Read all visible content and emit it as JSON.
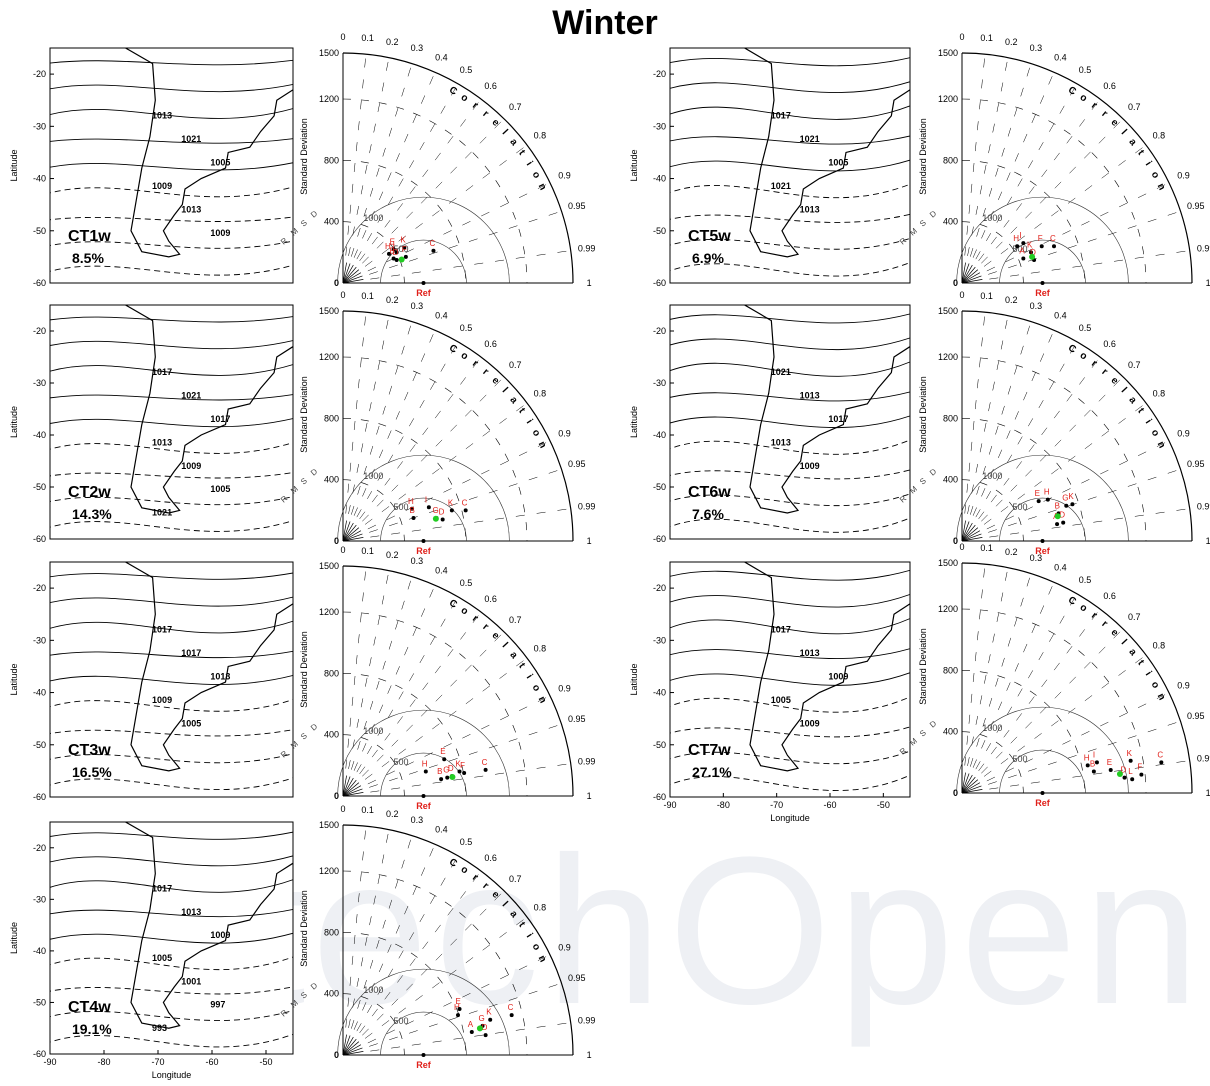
{
  "title": "Winter",
  "watermark": "IntechOpen",
  "map_axes": {
    "ylabel": "Latitude",
    "xlabel": "Longitude",
    "yticks": [
      -20,
      -30,
      -40,
      -50,
      -60
    ],
    "xticks": [
      -90,
      -80,
      -70,
      -60,
      -50
    ]
  },
  "taylor_axes": {
    "ylabel": "Standard Deviation",
    "std_ticks": [
      0,
      400,
      800,
      1200,
      1500
    ],
    "corr_title": "Correlation",
    "corr_ticks": [
      "0",
      "0.1",
      "0.2",
      "0.3",
      "0.4",
      "0.5",
      "0.6",
      "0.7",
      "0.8",
      "0.9",
      "0.95",
      "0.99",
      "1"
    ],
    "rms_title": "RMSD",
    "rms_labels": [
      "500",
      "1000"
    ],
    "ref_label": "Ref"
  },
  "chart_data": [
    {
      "type": "contour",
      "title": "CT1w",
      "frequency": "8.5%",
      "isobar_labels": [
        "1013",
        "1021",
        "1005",
        "1009",
        "1013",
        "1009"
      ],
      "xlim": [
        -90,
        -45
      ],
      "ylim": [
        -60,
        -15
      ]
    },
    {
      "type": "taylor",
      "title": "CT1w",
      "ylim": [
        0,
        1500
      ],
      "points": [
        {
          "label": "H",
          "x": 300,
          "y": 190
        },
        {
          "label": "E",
          "x": 330,
          "y": 220
        },
        {
          "label": "I",
          "x": 350,
          "y": 200
        },
        {
          "label": "K",
          "x": 400,
          "y": 230
        },
        {
          "label": "F",
          "x": 410,
          "y": 170
        },
        {
          "label": "C",
          "x": 590,
          "y": 210
        },
        {
          "label": "B",
          "x": 330,
          "y": 160
        },
        {
          "label": "D",
          "x": 350,
          "y": 150
        }
      ]
    },
    {
      "type": "contour",
      "title": "CT2w",
      "frequency": "14.3%",
      "isobar_labels": [
        "1017",
        "1021",
        "1017",
        "1013",
        "1009",
        "1005",
        "1021"
      ],
      "xlim": [
        -90,
        -45
      ],
      "ylim": [
        -60,
        -15
      ]
    },
    {
      "type": "taylor",
      "title": "CT2w",
      "ylim": [
        0,
        1500
      ],
      "points": [
        {
          "label": "H",
          "x": 450,
          "y": 210
        },
        {
          "label": "I",
          "x": 560,
          "y": 220
        },
        {
          "label": "K",
          "x": 710,
          "y": 200
        },
        {
          "label": "C",
          "x": 800,
          "y": 200
        },
        {
          "label": "G",
          "x": 610,
          "y": 150
        },
        {
          "label": "D",
          "x": 650,
          "y": 140
        },
        {
          "label": "B",
          "x": 460,
          "y": 150
        }
      ]
    },
    {
      "type": "contour",
      "title": "CT3w",
      "frequency": "16.5%",
      "isobar_labels": [
        "1017",
        "1017",
        "1013",
        "1009",
        "1005"
      ],
      "xlim": [
        -90,
        -45
      ],
      "ylim": [
        -60,
        -15
      ]
    },
    {
      "type": "taylor",
      "title": "CT3w",
      "ylim": [
        0,
        1500
      ],
      "points": [
        {
          "label": "H",
          "x": 540,
          "y": 160
        },
        {
          "label": "E",
          "x": 660,
          "y": 240
        },
        {
          "label": "K",
          "x": 760,
          "y": 160
        },
        {
          "label": "F",
          "x": 790,
          "y": 150
        },
        {
          "label": "C",
          "x": 930,
          "y": 170
        },
        {
          "label": "B",
          "x": 640,
          "y": 110
        },
        {
          "label": "G",
          "x": 680,
          "y": 120
        },
        {
          "label": "D",
          "x": 710,
          "y": 130
        }
      ]
    },
    {
      "type": "contour",
      "title": "CT4w",
      "frequency": "19.1%",
      "isobar_labels": [
        "1017",
        "1013",
        "1009",
        "1005",
        "1001",
        "997",
        "993"
      ],
      "xlim": [
        -90,
        -45
      ],
      "ylim": [
        -60,
        -15
      ]
    },
    {
      "type": "taylor",
      "title": "CT4w",
      "ylim": [
        0,
        1500
      ],
      "points": [
        {
          "label": "H",
          "x": 750,
          "y": 260
        },
        {
          "label": "E",
          "x": 760,
          "y": 300
        },
        {
          "label": "A",
          "x": 840,
          "y": 150
        },
        {
          "label": "G",
          "x": 910,
          "y": 190
        },
        {
          "label": "K",
          "x": 960,
          "y": 230
        },
        {
          "label": "C",
          "x": 1100,
          "y": 260
        },
        {
          "label": "D",
          "x": 930,
          "y": 130
        }
      ]
    },
    {
      "type": "contour",
      "title": "CT5w",
      "frequency": "6.9%",
      "isobar_labels": [
        "1017",
        "1021",
        "1005",
        "1021",
        "1013"
      ],
      "xlim": [
        -90,
        -45
      ],
      "ylim": [
        -60,
        -15
      ]
    },
    {
      "type": "taylor",
      "title": "CT5w",
      "ylim": [
        0,
        1500
      ],
      "points": [
        {
          "label": "H",
          "x": 360,
          "y": 240
        },
        {
          "label": "I",
          "x": 400,
          "y": 260
        },
        {
          "label": "F",
          "x": 520,
          "y": 240
        },
        {
          "label": "C",
          "x": 600,
          "y": 240
        },
        {
          "label": "K",
          "x": 450,
          "y": 200
        },
        {
          "label": "A",
          "x": 400,
          "y": 160
        },
        {
          "label": "D",
          "x": 470,
          "y": 150
        }
      ]
    },
    {
      "type": "contour",
      "title": "CT6w",
      "frequency": "7.6%",
      "isobar_labels": [
        "1021",
        "1013",
        "1017",
        "1013",
        "1009"
      ],
      "xlim": [
        -90,
        -45
      ],
      "ylim": [
        -60,
        -15
      ]
    },
    {
      "type": "taylor",
      "title": "CT6w",
      "ylim": [
        0,
        1500
      ],
      "points": [
        {
          "label": "E",
          "x": 500,
          "y": 260
        },
        {
          "label": "H",
          "x": 560,
          "y": 270
        },
        {
          "label": "G",
          "x": 680,
          "y": 230
        },
        {
          "label": "K",
          "x": 720,
          "y": 240
        },
        {
          "label": "B",
          "x": 630,
          "y": 180
        },
        {
          "label": "A",
          "x": 620,
          "y": 110
        },
        {
          "label": "D",
          "x": 660,
          "y": 120
        }
      ]
    },
    {
      "type": "contour",
      "title": "CT7w",
      "frequency": "27.1%",
      "isobar_labels": [
        "1017",
        "1013",
        "1009",
        "1005",
        "1009"
      ],
      "xlim": [
        -90,
        -45
      ],
      "ylim": [
        -60,
        -15
      ]
    },
    {
      "type": "taylor",
      "title": "CT7w",
      "ylim": [
        0,
        1500
      ],
      "points": [
        {
          "label": "H",
          "x": 820,
          "y": 180
        },
        {
          "label": "I",
          "x": 880,
          "y": 200
        },
        {
          "label": "B",
          "x": 860,
          "y": 140
        },
        {
          "label": "E",
          "x": 970,
          "y": 150
        },
        {
          "label": "K",
          "x": 1100,
          "y": 210
        },
        {
          "label": "C",
          "x": 1300,
          "y": 200
        },
        {
          "label": "F",
          "x": 1170,
          "y": 120
        },
        {
          "label": "D",
          "x": 1060,
          "y": 100
        },
        {
          "label": "L",
          "x": 1110,
          "y": 90
        }
      ]
    }
  ]
}
